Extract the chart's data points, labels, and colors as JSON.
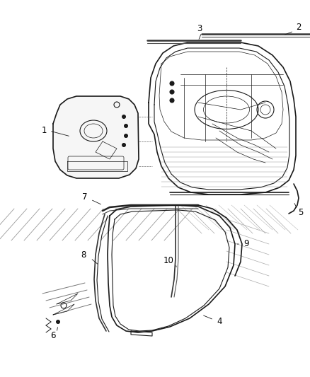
{
  "background_color": "#ffffff",
  "line_color": "#1a1a1a",
  "label_color": "#000000",
  "label_fontsize": 8.5,
  "fig_width": 4.38,
  "fig_height": 5.33,
  "dpi": 100
}
